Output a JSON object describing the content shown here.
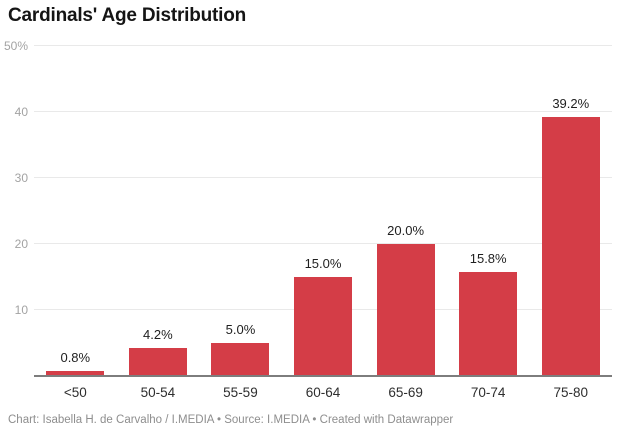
{
  "title": "Cardinals' Age Distribution",
  "footer": "Chart: Isabella H. de Carvalho / I.MEDIA • Source: I.MEDIA • Created with Datawrapper",
  "colors": {
    "bar": "#d43d47",
    "gridline": "#e9e9e9",
    "baseline": "#7d7d7d",
    "tick_label": "#a3a3a3",
    "value_label": "#1f1f1f",
    "x_label": "#2e2e2e",
    "footer_text": "#8e8e8e",
    "background": "#ffffff"
  },
  "chart_data": {
    "type": "bar",
    "title": "Cardinals' Age Distribution",
    "categories": [
      "<50",
      "50-54",
      "55-59",
      "60-64",
      "65-69",
      "70-74",
      "75-80"
    ],
    "values": [
      0.8,
      4.2,
      5.0,
      15.0,
      20.0,
      15.8,
      39.2
    ],
    "value_labels": [
      "0.8%",
      "4.2%",
      "5.0%",
      "15.0%",
      "20.0%",
      "15.8%",
      "39.2%"
    ],
    "xlabel": "",
    "ylabel": "",
    "ylim": [
      0,
      50
    ],
    "y_ticks": [
      {
        "value": 50,
        "label": "50%"
      },
      {
        "value": 40,
        "label": "40"
      },
      {
        "value": 30,
        "label": "30"
      },
      {
        "value": 20,
        "label": "20"
      },
      {
        "value": 10,
        "label": "10"
      }
    ],
    "grid": "horizontal",
    "legend": "none"
  }
}
